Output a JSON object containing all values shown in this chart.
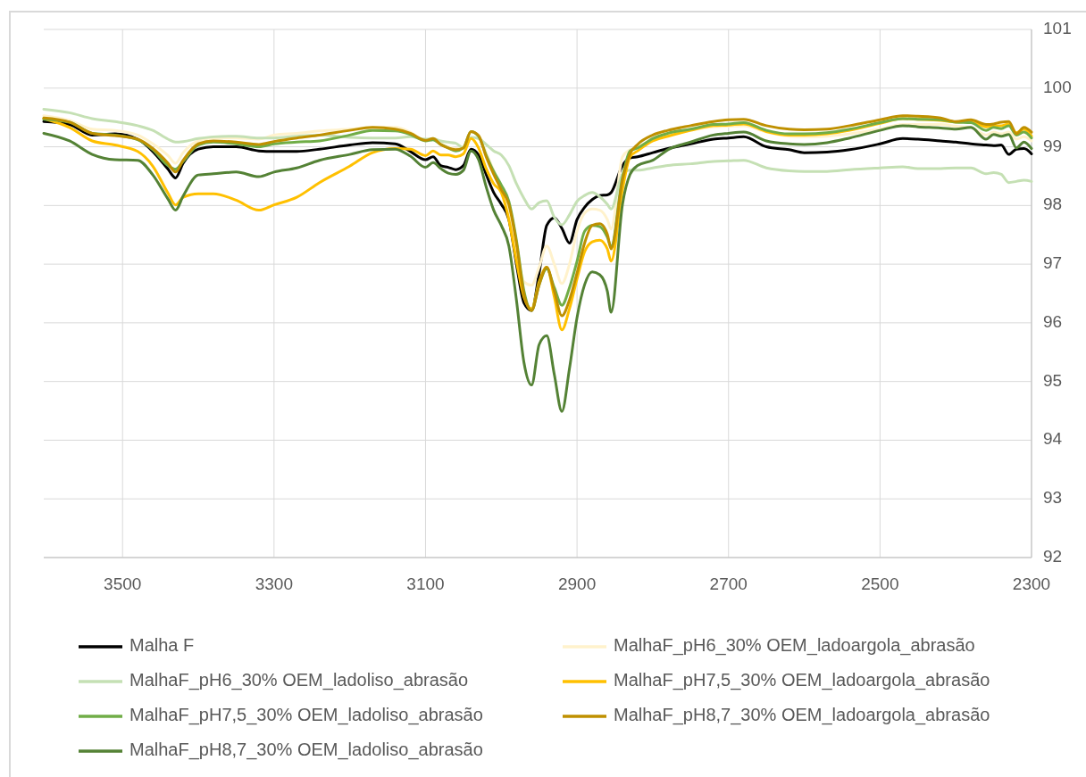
{
  "chart_data": {
    "type": "line",
    "x": [
      3604,
      3570,
      3540,
      3510,
      3480,
      3460,
      3440,
      3430,
      3420,
      3400,
      3380,
      3350,
      3320,
      3300,
      3270,
      3240,
      3200,
      3170,
      3140,
      3120,
      3100,
      3090,
      3080,
      3070,
      3060,
      3050,
      3040,
      3030,
      3020,
      3010,
      3000,
      2990,
      2980,
      2970,
      2960,
      2950,
      2940,
      2930,
      2920,
      2910,
      2900,
      2890,
      2880,
      2870,
      2860,
      2855,
      2840,
      2830,
      2820,
      2800,
      2780,
      2750,
      2720,
      2700,
      2680,
      2650,
      2620,
      2600,
      2570,
      2540,
      2500,
      2470,
      2450,
      2420,
      2400,
      2380,
      2360,
      2350,
      2340,
      2330,
      2320,
      2310,
      2300
    ],
    "xlim": [
      3604,
      2300
    ],
    "xticks": [
      3500,
      3300,
      3100,
      2900,
      2700,
      2500,
      2300
    ],
    "ylim": [
      92,
      101
    ],
    "yticks": [
      92,
      93,
      94,
      95,
      96,
      97,
      98,
      99,
      100,
      101
    ],
    "grid": true,
    "legend": "bottom",
    "series": [
      {
        "name": "Malha F",
        "color": "#000000",
        "values": [
          99.43,
          99.38,
          99.2,
          99.22,
          99.13,
          98.92,
          98.62,
          98.47,
          98.72,
          98.96,
          99.0,
          99.0,
          98.93,
          98.92,
          98.92,
          98.96,
          99.03,
          99.07,
          99.05,
          98.92,
          98.78,
          98.83,
          98.68,
          98.65,
          98.61,
          98.68,
          98.96,
          98.86,
          98.53,
          98.22,
          98.02,
          97.76,
          97.0,
          96.34,
          96.21,
          96.85,
          97.66,
          97.79,
          97.61,
          97.36,
          97.76,
          97.97,
          98.1,
          98.17,
          98.18,
          98.22,
          98.68,
          98.81,
          98.83,
          98.9,
          98.97,
          99.05,
          99.13,
          99.15,
          99.17,
          99.0,
          98.95,
          98.9,
          98.91,
          98.95,
          99.05,
          99.14,
          99.13,
          99.1,
          99.08,
          99.05,
          99.03,
          99.02,
          99.03,
          98.87,
          98.96,
          98.97,
          98.88
        ]
      },
      {
        "name": "MalhaF_pH6_30% OEM_ladoargola_abrasão",
        "color": "#fff2cc",
        "values": [
          99.53,
          99.45,
          99.3,
          99.28,
          99.2,
          99.05,
          98.85,
          98.72,
          98.9,
          99.1,
          99.15,
          99.15,
          99.13,
          99.2,
          99.23,
          99.27,
          99.3,
          99.33,
          99.33,
          99.25,
          99.1,
          99.14,
          99.06,
          99.0,
          98.97,
          99.0,
          99.25,
          99.2,
          98.9,
          98.6,
          98.3,
          97.92,
          97.26,
          96.7,
          96.64,
          96.95,
          97.31,
          97.0,
          96.67,
          97.0,
          97.56,
          97.87,
          97.94,
          97.92,
          97.76,
          97.6,
          98.83,
          98.95,
          99.0,
          99.12,
          99.2,
          99.28,
          99.34,
          99.35,
          99.36,
          99.25,
          99.18,
          99.17,
          99.18,
          99.22,
          99.3,
          99.38,
          99.38,
          99.38,
          99.35,
          99.33,
          99.2,
          99.25,
          99.22,
          99.25,
          99.13,
          99.17,
          99.1
        ]
      },
      {
        "name": "MalhaF_pH6_30% OEM_ladoliso_abrasão",
        "color": "#c5e0b4",
        "values": [
          99.64,
          99.58,
          99.48,
          99.43,
          99.36,
          99.28,
          99.13,
          99.08,
          99.09,
          99.14,
          99.17,
          99.18,
          99.15,
          99.15,
          99.18,
          99.2,
          99.16,
          99.15,
          99.15,
          99.17,
          99.13,
          99.14,
          99.1,
          99.08,
          99.06,
          98.98,
          99.16,
          99.14,
          99.04,
          98.93,
          98.86,
          98.68,
          98.37,
          98.12,
          97.94,
          98.05,
          98.08,
          97.8,
          97.67,
          97.84,
          98.07,
          98.17,
          98.22,
          98.15,
          98.02,
          97.94,
          98.53,
          98.6,
          98.6,
          98.64,
          98.68,
          98.71,
          98.75,
          98.76,
          98.77,
          98.64,
          98.59,
          98.58,
          98.58,
          98.61,
          98.64,
          98.66,
          98.63,
          98.63,
          98.64,
          98.64,
          98.54,
          98.56,
          98.53,
          98.39,
          98.41,
          98.43,
          98.41
        ]
      },
      {
        "name": "MalhaF_pH7,5_30% OEM_ladoargola_abrasão",
        "color": "#ffc000",
        "values": [
          99.48,
          99.33,
          99.1,
          99.03,
          98.92,
          98.67,
          98.21,
          98.01,
          98.14,
          98.2,
          98.2,
          98.09,
          97.92,
          98.01,
          98.14,
          98.39,
          98.67,
          98.9,
          98.97,
          98.96,
          98.85,
          98.93,
          98.86,
          98.86,
          98.83,
          98.88,
          99.14,
          98.98,
          98.63,
          98.37,
          98.22,
          97.76,
          97.05,
          96.44,
          96.24,
          96.7,
          96.95,
          96.44,
          95.88,
          96.24,
          96.75,
          97.21,
          97.38,
          97.41,
          97.26,
          97.05,
          98.27,
          98.83,
          98.93,
          99.1,
          99.18,
          99.28,
          99.36,
          99.37,
          99.39,
          99.26,
          99.2,
          99.2,
          99.22,
          99.28,
          99.4,
          99.48,
          99.47,
          99.45,
          99.42,
          99.43,
          99.34,
          99.36,
          99.36,
          99.39,
          99.24,
          99.3,
          99.18
        ]
      },
      {
        "name": "MalhaF_pH7,5_30% OEM_ladoliso_abrasão",
        "color": "#70ad47",
        "values": [
          99.47,
          99.42,
          99.23,
          99.2,
          99.12,
          98.95,
          98.68,
          98.62,
          98.75,
          99.03,
          99.08,
          99.05,
          99.0,
          99.05,
          99.08,
          99.1,
          99.2,
          99.28,
          99.27,
          99.21,
          99.1,
          99.12,
          99.04,
          98.98,
          98.93,
          98.98,
          99.26,
          99.18,
          98.86,
          98.58,
          98.35,
          98.07,
          97.41,
          96.54,
          96.21,
          96.65,
          96.92,
          96.6,
          96.3,
          96.6,
          97.05,
          97.56,
          97.66,
          97.64,
          97.46,
          97.3,
          98.48,
          98.93,
          98.98,
          99.14,
          99.23,
          99.3,
          99.38,
          99.39,
          99.41,
          99.28,
          99.22,
          99.22,
          99.24,
          99.3,
          99.41,
          99.48,
          99.47,
          99.46,
          99.42,
          99.41,
          99.28,
          99.33,
          99.31,
          99.36,
          99.2,
          99.25,
          99.15
        ]
      },
      {
        "name": "MalhaF_pH8,7_30% OEM_ladoargola_abrasão",
        "color": "#bf9000",
        "values": [
          99.49,
          99.42,
          99.23,
          99.19,
          99.13,
          98.97,
          98.72,
          98.57,
          98.77,
          99.05,
          99.1,
          99.08,
          99.04,
          99.09,
          99.15,
          99.2,
          99.28,
          99.33,
          99.3,
          99.23,
          99.11,
          99.14,
          99.04,
          98.98,
          98.95,
          98.98,
          99.26,
          99.19,
          98.83,
          98.53,
          98.27,
          98.02,
          97.36,
          96.49,
          96.21,
          96.65,
          96.95,
          96.54,
          96.12,
          96.39,
          96.85,
          97.36,
          97.66,
          97.69,
          97.51,
          97.26,
          98.43,
          98.88,
          99.04,
          99.2,
          99.28,
          99.36,
          99.43,
          99.46,
          99.47,
          99.36,
          99.3,
          99.29,
          99.3,
          99.36,
          99.46,
          99.53,
          99.52,
          99.49,
          99.43,
          99.46,
          99.38,
          99.39,
          99.42,
          99.43,
          99.22,
          99.33,
          99.25
        ]
      },
      {
        "name": "MalhaF_pH8,7_30% OEM_ladoliso_abrasão",
        "color": "#548235",
        "values": [
          99.23,
          99.1,
          98.87,
          98.78,
          98.77,
          98.52,
          98.11,
          97.92,
          98.16,
          98.52,
          98.54,
          98.57,
          98.49,
          98.57,
          98.64,
          98.77,
          98.87,
          98.95,
          98.96,
          98.84,
          98.65,
          98.73,
          98.63,
          98.55,
          98.53,
          98.6,
          98.93,
          98.78,
          98.32,
          97.92,
          97.66,
          97.31,
          96.39,
          95.32,
          94.94,
          95.63,
          95.78,
          95.12,
          94.49,
          95.22,
          96.09,
          96.65,
          96.87,
          96.82,
          96.54,
          96.18,
          98.02,
          98.53,
          98.68,
          98.77,
          98.95,
          99.08,
          99.2,
          99.23,
          99.25,
          99.1,
          99.05,
          99.04,
          99.07,
          99.15,
          99.28,
          99.36,
          99.34,
          99.32,
          99.3,
          99.33,
          99.13,
          99.21,
          99.18,
          99.21,
          98.98,
          99.08,
          98.97
        ]
      }
    ]
  }
}
